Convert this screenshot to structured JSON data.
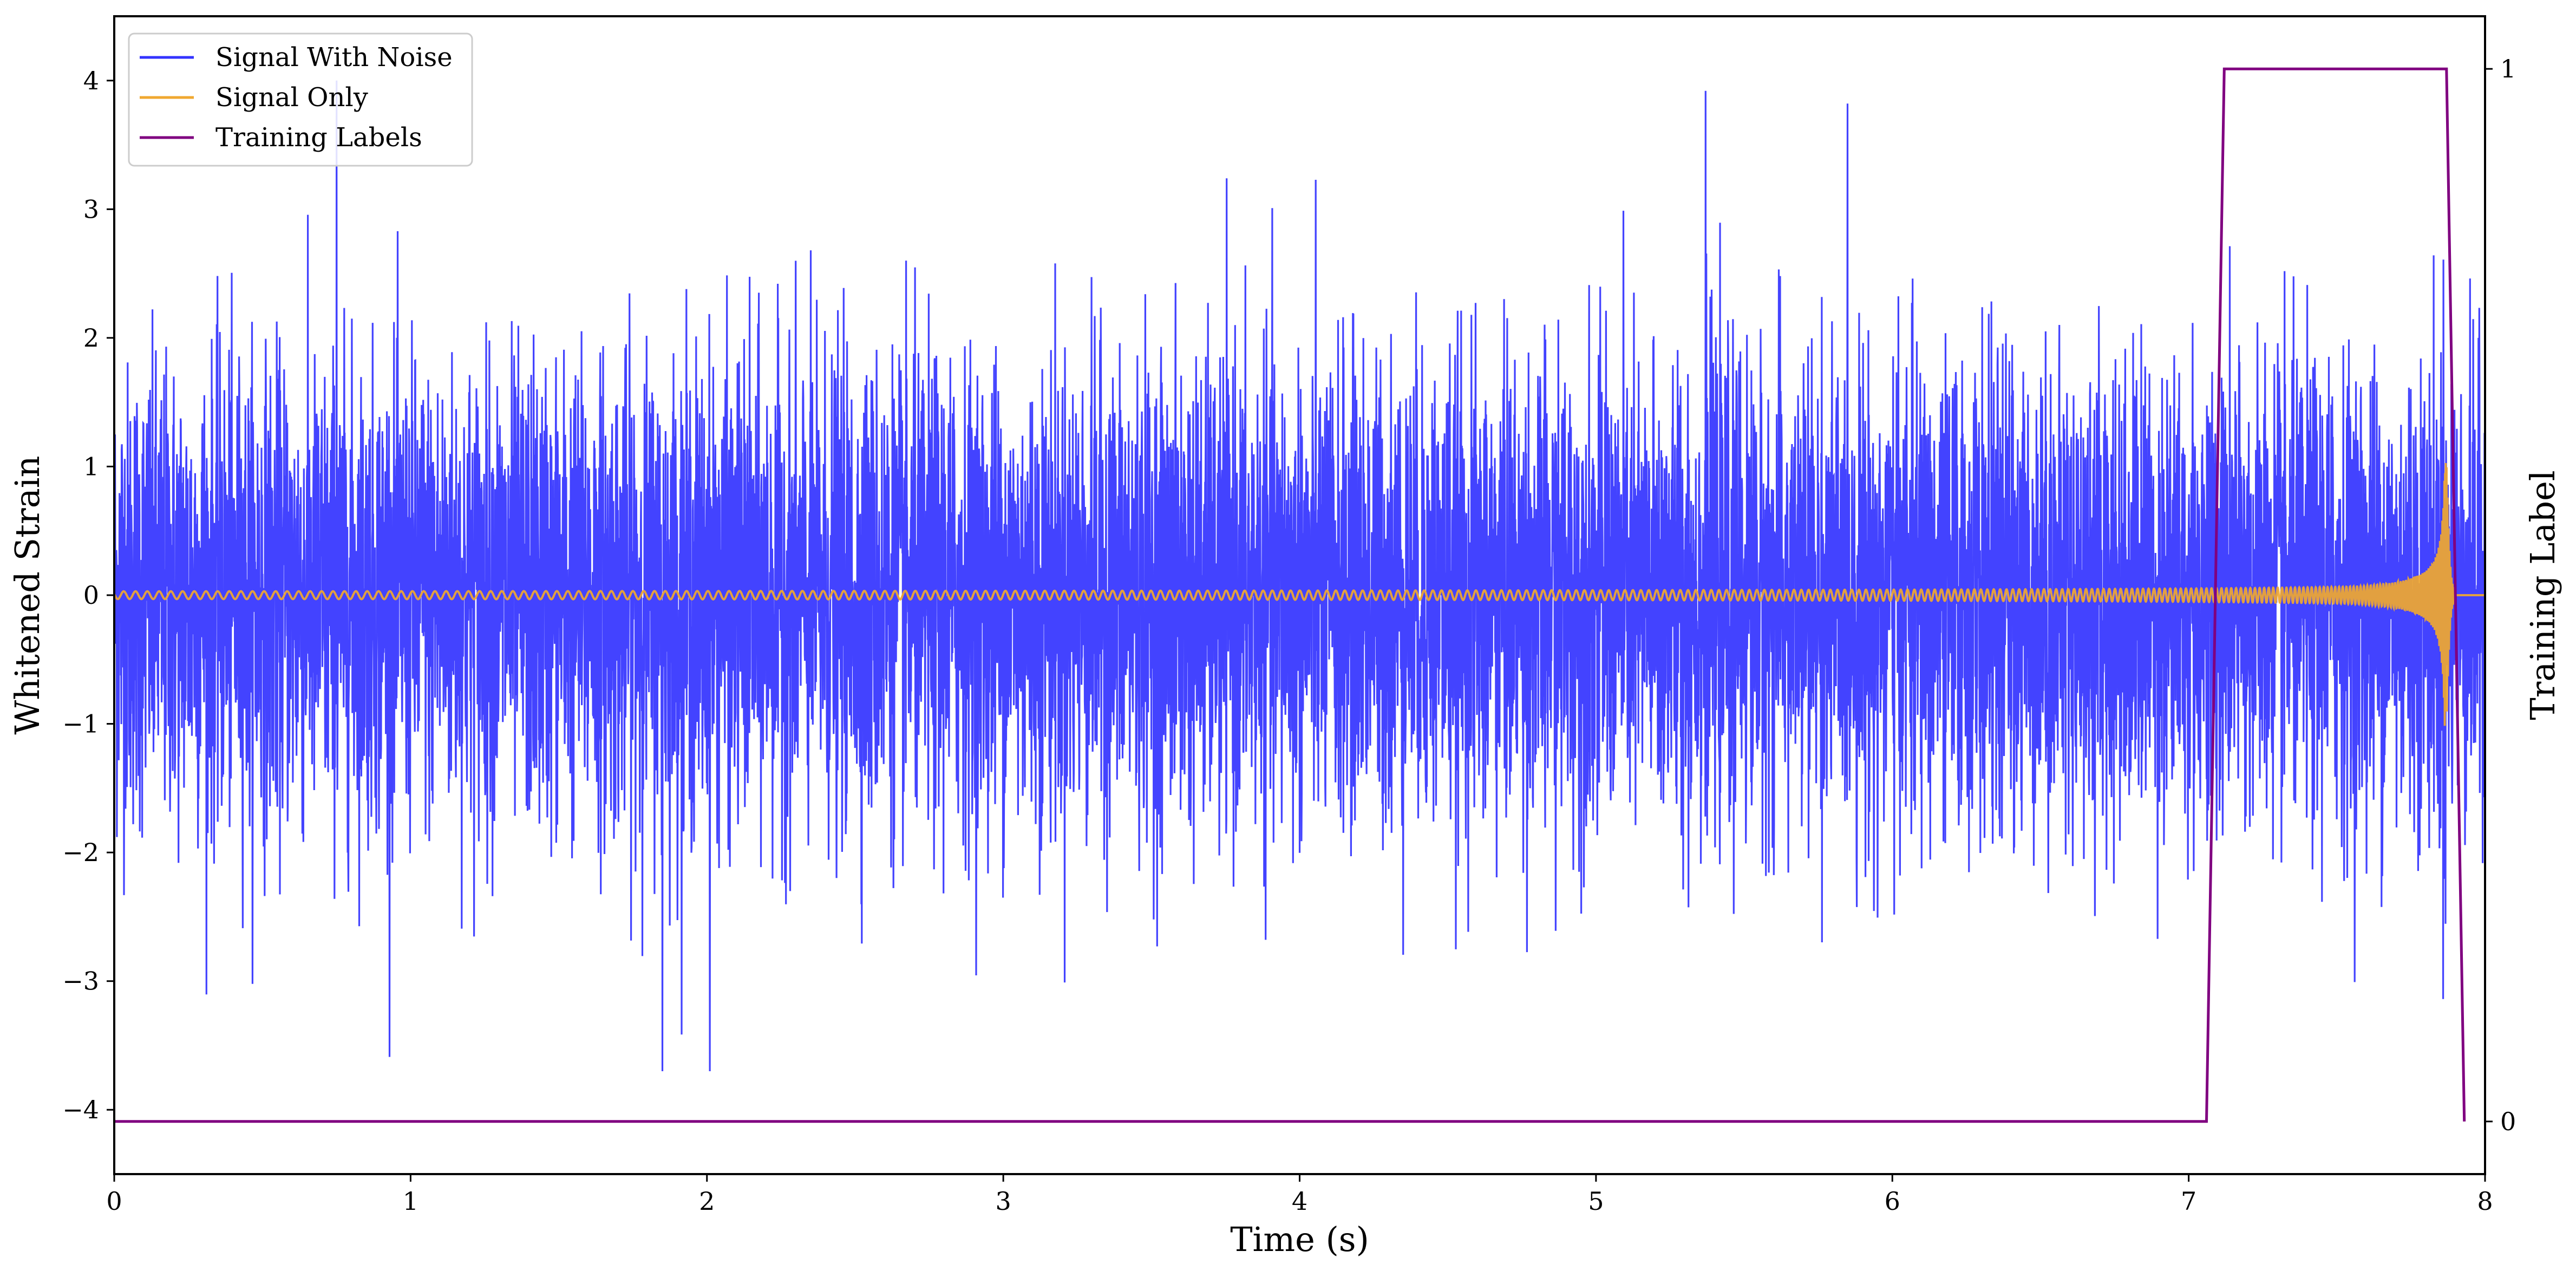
{
  "chart_data": {
    "type": "line",
    "title": "",
    "xlabel": "Time (s)",
    "ylabel": "Whitened Strain",
    "y2label": "Training Label",
    "xlim": [
      0,
      8
    ],
    "ylim": [
      -4.5,
      4.5
    ],
    "y2lim": [
      -0.05,
      1.05
    ],
    "x_ticks": [
      0,
      1,
      2,
      3,
      4,
      5,
      6,
      7,
      8
    ],
    "x_tick_labels": [
      "0",
      "1",
      "2",
      "3",
      "4",
      "5",
      "6",
      "7",
      "8"
    ],
    "y_ticks": [
      -4,
      -3,
      -2,
      -1,
      0,
      1,
      2,
      3,
      4
    ],
    "y_tick_labels": [
      "−4",
      "−3",
      "−2",
      "−1",
      "0",
      "1",
      "2",
      "3",
      "4"
    ],
    "y2_ticks": [
      0,
      1
    ],
    "y2_tick_labels": [
      "0",
      "1"
    ],
    "grid": false,
    "legend_position": "top-left",
    "series": [
      {
        "name": "Signal With Noise",
        "color": "#3333ff",
        "axis": "left",
        "kind": "noise",
        "approx_std": 0.9,
        "approx_range": [
          -3.7,
          4.0
        ],
        "notable_peaks": [
          {
            "x": 0.75,
            "y": 4.0
          },
          {
            "x": 5.37,
            "y": 3.92
          },
          {
            "x": 1.85,
            "y": -3.7
          },
          {
            "x": 2.01,
            "y": -3.7
          }
        ]
      },
      {
        "name": "Signal Only",
        "color": "#f0a830",
        "axis": "left",
        "kind": "chirp",
        "amplitude_start": 0.03,
        "amplitude_peak": 1.2,
        "merger_time": 7.87,
        "ringdown_end": 7.9
      },
      {
        "name": "Training Labels",
        "color": "#800080",
        "axis": "right",
        "kind": "step",
        "x": [
          0,
          7.06,
          7.12,
          7.87,
          7.93
        ],
        "y": [
          0,
          0,
          1,
          1,
          0
        ]
      }
    ]
  },
  "colors": {
    "axes": "#000000",
    "background": "#ffffff"
  }
}
